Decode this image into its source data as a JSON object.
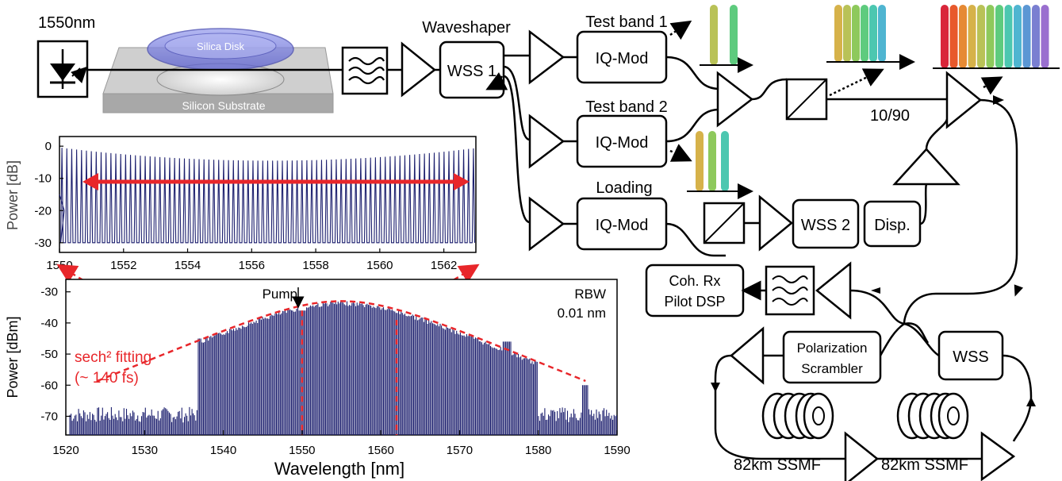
{
  "colors": {
    "line": "#000000",
    "trace": "#1c1f6e",
    "fit": "#e8262a",
    "disk": "#6b6fd6",
    "substrate": "#b9b9b9"
  },
  "setup": {
    "laser_label": "1550nm",
    "disk_label": "Silica Disk",
    "substrate_label": "Silicon Substrate",
    "waveshaper_label": "Waveshaper",
    "wss1_label": "WSS 1",
    "test_band1_label": "Test band 1",
    "test_band2_label": "Test band 2",
    "loading_label": "Loading",
    "iq_mod_label": "IQ-Mod",
    "wss2_label": "WSS 2",
    "disp_label": "Disp.",
    "coupler_label": "10/90",
    "rx_line1": "Coh. Rx",
    "rx_line2": "Pilot  DSP",
    "scrambler_line1": "Polarization",
    "scrambler_line2": "Scrambler",
    "loop_wss_label": "WSS",
    "span1_label": "82km SSMF",
    "span2_label": "82km SSMF",
    "spectrum_colors": [
      "#d9263a",
      "#e8592c",
      "#e68a34",
      "#d6b24a",
      "#b9c257",
      "#8ec95c",
      "#5ecb7e",
      "#4cc7b0",
      "#4fb5d1",
      "#5b97d4",
      "#7a7fd1",
      "#9a6fcf"
    ]
  },
  "chart_data": [
    {
      "type": "line",
      "title": "",
      "xlabel": "",
      "ylabel": "Power [dB]",
      "xlim": [
        1550,
        1563
      ],
      "ylim": [
        -33,
        3
      ],
      "xticks": [
        "1550",
        "1552",
        "1554",
        "1556",
        "1558",
        "1560",
        "1562"
      ],
      "yticks": [
        "0",
        "-10",
        "-20",
        "-30"
      ],
      "line_count": 85,
      "peak_level": -3,
      "floor_level": -30
    },
    {
      "type": "line",
      "title": "",
      "xlabel": "Wavelength [nm]",
      "ylabel": "Power [dBm]",
      "xlim": [
        1520,
        1590
      ],
      "ylim": [
        -76,
        -26
      ],
      "xticks": [
        "1520",
        "1530",
        "1540",
        "1550",
        "1560",
        "1570",
        "1580",
        "1590"
      ],
      "yticks": [
        "-30",
        "-40",
        "-50",
        "-60",
        "-70"
      ],
      "pump_label": "Pump",
      "pump_wavelength": 1550,
      "rbw_line1": "RBW",
      "rbw_line2": "0.01 nm",
      "fit_line1": "sech² fitting",
      "fit_line2": "(~ 140 fs)",
      "fit_center": 1555,
      "fit_peak": -33,
      "comb_start": 1537,
      "comb_end": 1580,
      "floor_level": -72
    }
  ]
}
